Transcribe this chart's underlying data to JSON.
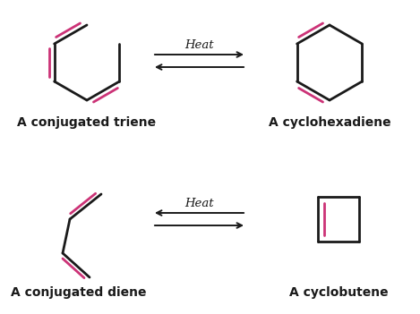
{
  "bg_color": "#ffffff",
  "black": "#1a1a1a",
  "pink": "#cc3377",
  "label1": "A conjugated triene",
  "label2": "A cyclohexadiene",
  "label3": "A conjugated diene",
  "label4": "A cyclobutene",
  "heat_label": "Heat",
  "lw": 2.0,
  "fig_w": 4.69,
  "fig_h": 3.51,
  "dpi": 100
}
